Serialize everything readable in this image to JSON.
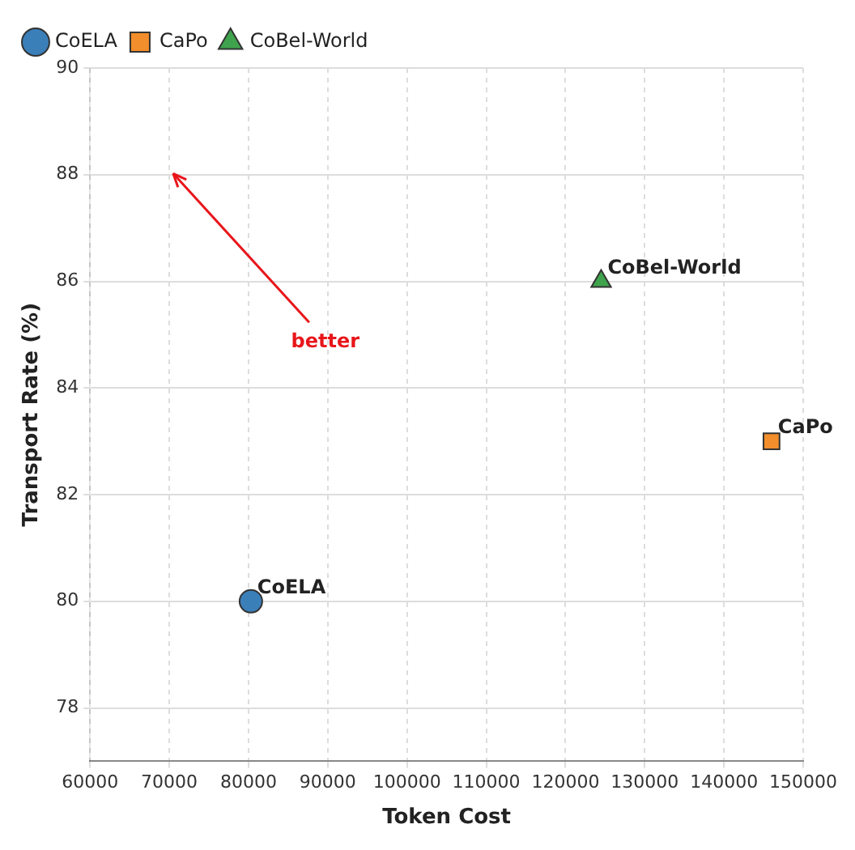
{
  "chart_data": {
    "type": "scatter",
    "xlabel": "Token Cost",
    "ylabel": "Transport Rate (%)",
    "xlim": [
      60000,
      150000
    ],
    "xticks": [
      60000,
      70000,
      80000,
      90000,
      100000,
      110000,
      120000,
      130000,
      140000,
      150000
    ],
    "ylim": [
      77,
      90
    ],
    "yticks": [
      78,
      80,
      82,
      84,
      86,
      88,
      90
    ],
    "grid": true,
    "legend": "top left",
    "annotations": [
      "better"
    ],
    "series": [
      {
        "name": "CoELA",
        "color": "#3b7fb9",
        "marker": "circle",
        "x": [
          80300
        ],
        "values": [
          80
        ]
      },
      {
        "name": "CaPo",
        "color": "#f28e2b",
        "marker": "square",
        "x": [
          146000
        ],
        "values": [
          83
        ]
      },
      {
        "name": "CoBel-World",
        "color": "#3fa34d",
        "marker": "triangle",
        "x": [
          124500
        ],
        "values": [
          86
        ]
      }
    ]
  }
}
